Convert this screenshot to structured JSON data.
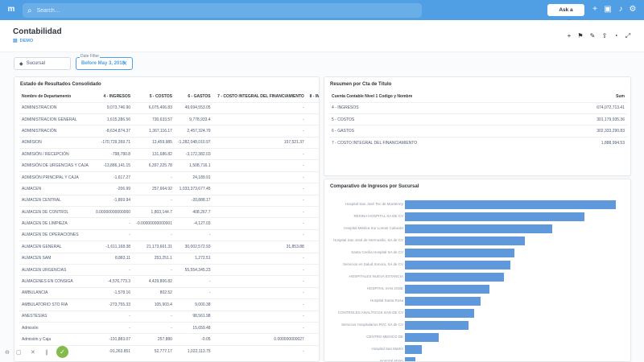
{
  "topbar": {
    "logo": "m",
    "search_placeholder": "Search…",
    "ask_label": "Ask a question",
    "icons": [
      "plus-icon",
      "dashboard-icon",
      "bell-icon",
      "gear-icon"
    ]
  },
  "header": {
    "title": "Contabilidad",
    "collection": "DEMO",
    "icons": [
      "plus-icon",
      "collection-add-icon",
      "pencil-icon",
      "share-icon",
      "history-icon",
      "clock-icon",
      "fullscreen-icon"
    ]
  },
  "filters": {
    "sucursal_label": "Sucursal",
    "date_filter_label": "Date Filter",
    "date_filter_value": "Before May 3, 2018"
  },
  "estado": {
    "title": "Estado de Resultados Consolidado",
    "columns": [
      "Nombre de Departamento",
      "4 - INGRESOS",
      "5 - COSTOS",
      "6 - GASTOS",
      "7 - COSTO INTEGRAL DEL FINANCIAMIENTO",
      "8 - IMPUES"
    ],
    "rows": [
      [
        "ADMINISTRACION",
        "9,073,746.90",
        "6,075,406.83",
        "49,694,553.05",
        "-",
        "-"
      ],
      [
        "ADMINISTRACION GENERAL",
        "1,615,286.56",
        "730,633.57",
        "9,778,933.4",
        "-",
        "-"
      ],
      [
        "ADMINISTRACIÓN",
        "-8,634,874.37",
        "1,367,116.17",
        "2,457,324.79",
        "-",
        "-"
      ],
      [
        "ADMISION",
        "-170,729,359.71",
        "13,459,985",
        "-1,282,048,010.97",
        "157,521.37",
        "-"
      ],
      [
        "ADMISIÓN / RECEPCIÓN",
        "-798,780.8",
        "131,686.82",
        "-3,172,382.03",
        "-",
        "-"
      ],
      [
        "ADMISIÓN DE URGENCIAS Y CAJA",
        "-13,886,141.15",
        "6,397,225.78",
        "1,508,716.1",
        "-",
        "-"
      ],
      [
        "ADMISIÓN PRINCIPAL Y CAJA",
        "-1,617.27",
        "-",
        "24,189.91",
        "-",
        "-"
      ],
      [
        "ALMACEN",
        "-206.99",
        "257,664.92",
        "1,033,373,677.45",
        "-",
        "-"
      ],
      [
        "ALMACEN CENTRAL",
        "-1,869.94",
        "-",
        "-20,888.17",
        "-",
        "-"
      ],
      [
        "ALMACEN DE CONTROL",
        "0.00000000000000",
        "1,803,144.7",
        "408,267.7",
        "-",
        "-"
      ],
      [
        "ALMACEN DE LIMPIEZA",
        "-",
        "-0.00000000000001",
        "-4,127.03",
        "-",
        "-"
      ],
      [
        "ALMACEN DE OPERACIONES",
        "-",
        "-",
        "-",
        "-",
        "-"
      ],
      [
        "ALMACEN GENERAL",
        "-1,611,168.38",
        "21,173,661.31",
        "30,002,572.93",
        "31,853.88",
        "1"
      ],
      [
        "ALMACEN SAM",
        "8,883.11",
        "253,251.1",
        "1,272.51",
        "-",
        "-"
      ],
      [
        "ALMACEN URGENCIAS",
        "-",
        "-",
        "55,554,345.23",
        "-",
        "-"
      ],
      [
        "ALMACENES EN CONSIGA",
        "-4,576,773.3",
        "4,429,806.82",
        "-",
        "-",
        "-"
      ],
      [
        "AMBULANCIA",
        "-1,578.16",
        "802.52",
        "-",
        "-",
        "-"
      ],
      [
        "AMBULATORIO STO RIA",
        "-273,755.33",
        "105,903.4",
        "9,000.38",
        "-",
        "-"
      ],
      [
        "ANESTESIAS",
        "-",
        "-",
        "98,561.98",
        "-",
        "-"
      ],
      [
        "Admisión",
        "-",
        "-",
        "15,659.48",
        "-",
        "-"
      ],
      [
        "Admisión y Caja",
        "-191,883.07",
        "257,880",
        "-0.05",
        "0.000000000027",
        "-"
      ],
      [
        "",
        "-91,263.851",
        "52,777.17",
        "1,022,113.75",
        "-",
        "-"
      ]
    ]
  },
  "resumen": {
    "title": "Resumen por Cta de Título",
    "columns": [
      "Cuenta Contable Nivel 1 Codigo y Nombre",
      "Sum"
    ],
    "rows": [
      [
        "4 - INGRESOS",
        "674,072,713.41"
      ],
      [
        "5 - COSTOS",
        "301,179,935.36"
      ],
      [
        "6 - GASTOS",
        "302,333,290.83"
      ],
      [
        "7 - COSTO INTEGRAL DEL FINANCIAMIENTO",
        "1,888,994.53"
      ]
    ]
  },
  "comparativo": {
    "title": "Comparativo de Ingresos por Sucursal",
    "bar_color": "#6098dc",
    "chart_data": {
      "type": "bar",
      "orientation": "horizontal",
      "categories": [
        "Hospital San José Tec de Monterrey",
        "RESINA HOSPITAL SA DE CV",
        "Hospital Médica Sur Lomas Culiacán",
        "Hospital San José de Hermosillo, SA de CV",
        "Santa Cecilia Hospital SA de CV",
        "Servicios en Salud Sonora, SA de CV",
        "HOSPITALES NUEVA ESTANCIA",
        "HOSPITAL SAN JOSE",
        "Hospital Santa Rosa",
        "CONTROLES ANALÍTICOS SAN DE CV",
        "Servicios Hospitalarios RVC SA de CV",
        "CENTRO MEDICO DE",
        "Hospital San Martín",
        "Hospital Mater"
      ],
      "values": [
        100,
        85,
        70,
        57,
        52,
        50,
        47,
        40,
        36,
        33,
        30,
        16,
        8,
        5
      ]
    }
  }
}
